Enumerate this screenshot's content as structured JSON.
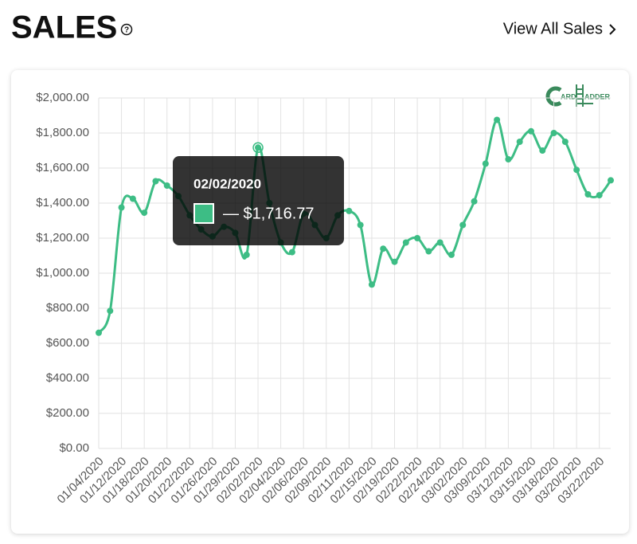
{
  "header": {
    "title": "SALES",
    "help": "?",
    "link": "View All Sales"
  },
  "logo": {
    "parts": [
      "ARD",
      "ADDER"
    ]
  },
  "chart_data": {
    "type": "line",
    "categories": [
      "01/04/2020",
      null,
      "01/12/2020",
      null,
      "01/18/2020",
      null,
      "01/20/2020",
      null,
      "01/22/2020",
      null,
      "01/26/2020",
      null,
      "01/29/2020",
      null,
      "02/02/2020",
      null,
      "02/04/2020",
      null,
      "02/06/2020",
      null,
      "02/09/2020",
      null,
      "02/11/2020",
      null,
      "02/15/2020",
      null,
      "02/19/2020",
      null,
      "02/22/2020",
      null,
      "02/24/2020",
      null,
      "03/02/2020",
      null,
      "03/09/2020",
      null,
      "03/12/2020",
      null,
      "03/15/2020",
      null,
      "03/18/2020",
      null,
      "03/20/2020",
      null,
      "03/22/2020",
      null
    ],
    "values": [
      660,
      785,
      1375,
      1425,
      1345,
      1525,
      1500,
      1440,
      1330,
      1250,
      1210,
      1265,
      1230,
      1105,
      1716.77,
      1400,
      1175,
      1120,
      1340,
      1275,
      1200,
      1330,
      1355,
      1275,
      935,
      1140,
      1065,
      1175,
      1200,
      1125,
      1175,
      1105,
      1275,
      1410,
      1625,
      1875,
      1650,
      1750,
      1810,
      1700,
      1800,
      1750,
      1590,
      1450,
      1445,
      1530
    ],
    "color": "#3dbd85",
    "ylim": [
      0,
      2000
    ],
    "yticks": [
      {
        "value": 0,
        "label": "$0.00"
      },
      {
        "value": 200,
        "label": "$200.00"
      },
      {
        "value": 400,
        "label": "$400.00"
      },
      {
        "value": 600,
        "label": "$600.00"
      },
      {
        "value": 800,
        "label": "$800.00"
      },
      {
        "value": 1000,
        "label": "$1,000.00"
      },
      {
        "value": 1200,
        "label": "$1,200.00"
      },
      {
        "value": 1400,
        "label": "$1,400.00"
      },
      {
        "value": 1600,
        "label": "$1,600.00"
      },
      {
        "value": 1800,
        "label": "$1,800.00"
      },
      {
        "value": 2000,
        "label": "$2,000.00"
      }
    ],
    "grid": true,
    "tooltip": {
      "title": "02/02/2020",
      "text": "— $1,716.77"
    }
  }
}
